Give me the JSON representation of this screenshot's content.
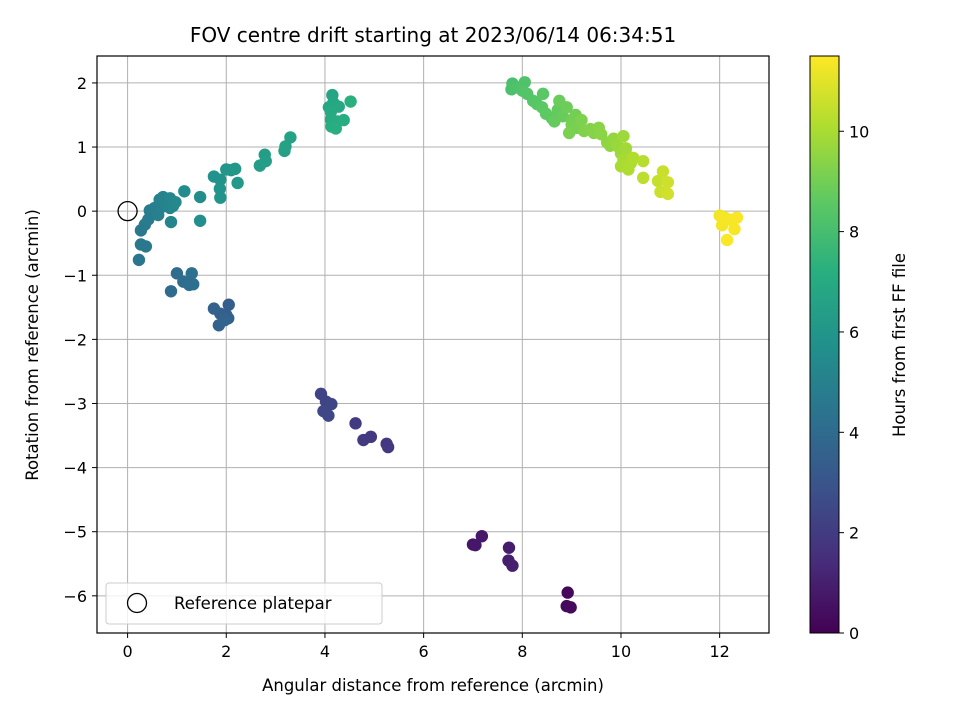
{
  "chart_data": {
    "type": "scatter",
    "title": "FOV centre drift starting at 2023/06/14 06:34:51",
    "xlabel": "Angular distance from reference (arcmin)",
    "ylabel": "Rotation from reference (arcmin)",
    "xlim": [
      -0.62,
      13.0
    ],
    "ylim": [
      -6.58,
      2.42
    ],
    "xticks": [
      0,
      2,
      4,
      6,
      8,
      10,
      12
    ],
    "yticks": [
      -6,
      -5,
      -4,
      -3,
      -2,
      -1,
      0,
      1,
      2
    ],
    "grid": true,
    "legend": {
      "placement": "lower-left",
      "entries": [
        "Reference platepar"
      ]
    },
    "colorbar": {
      "label": "Hours from first FF file",
      "range": [
        0,
        11.5
      ],
      "ticks": [
        0,
        2,
        4,
        6,
        8,
        10
      ],
      "colormap": "viridis"
    },
    "reference_point": {
      "x": 0,
      "y": 0,
      "label": "Reference platepar"
    },
    "points": [
      {
        "x": 8.92,
        "y": -5.95,
        "c": 0.2
      },
      {
        "x": 8.9,
        "y": -6.16,
        "c": 0.25
      },
      {
        "x": 8.98,
        "y": -6.18,
        "c": 0.3
      },
      {
        "x": 7.0,
        "y": -5.2,
        "c": 0.7
      },
      {
        "x": 7.05,
        "y": -5.21,
        "c": 0.72
      },
      {
        "x": 7.18,
        "y": -5.07,
        "c": 0.75
      },
      {
        "x": 7.73,
        "y": -5.25,
        "c": 0.9
      },
      {
        "x": 7.72,
        "y": -5.45,
        "c": 0.95
      },
      {
        "x": 7.8,
        "y": -5.53,
        "c": 1.0
      },
      {
        "x": 5.25,
        "y": -3.63,
        "c": 1.8
      },
      {
        "x": 5.28,
        "y": -3.68,
        "c": 1.85
      },
      {
        "x": 4.93,
        "y": -3.52,
        "c": 1.9
      },
      {
        "x": 4.78,
        "y": -3.57,
        "c": 1.95
      },
      {
        "x": 4.62,
        "y": -3.31,
        "c": 2.0
      },
      {
        "x": 3.92,
        "y": -2.85,
        "c": 2.3
      },
      {
        "x": 4.02,
        "y": -2.97,
        "c": 2.35
      },
      {
        "x": 4.13,
        "y": -3.01,
        "c": 2.4
      },
      {
        "x": 3.97,
        "y": -3.12,
        "c": 2.45
      },
      {
        "x": 4.07,
        "y": -3.19,
        "c": 2.5
      },
      {
        "x": 2.05,
        "y": -1.46,
        "c": 3.4
      },
      {
        "x": 2.0,
        "y": -1.62,
        "c": 3.45
      },
      {
        "x": 2.04,
        "y": -1.67,
        "c": 3.5
      },
      {
        "x": 1.88,
        "y": -1.6,
        "c": 3.55
      },
      {
        "x": 1.75,
        "y": -1.52,
        "c": 3.6
      },
      {
        "x": 1.85,
        "y": -1.78,
        "c": 3.65
      },
      {
        "x": 1.97,
        "y": -1.7,
        "c": 3.7
      },
      {
        "x": 0.88,
        "y": -1.25,
        "c": 4.0
      },
      {
        "x": 1.0,
        "y": -0.97,
        "c": 4.05
      },
      {
        "x": 1.13,
        "y": -1.1,
        "c": 4.1
      },
      {
        "x": 1.25,
        "y": -1.15,
        "c": 4.15
      },
      {
        "x": 1.33,
        "y": -1.14,
        "c": 4.2
      },
      {
        "x": 1.3,
        "y": -0.97,
        "c": 4.25
      },
      {
        "x": 0.23,
        "y": -0.76,
        "c": 4.5
      },
      {
        "x": 0.27,
        "y": -0.52,
        "c": 4.55
      },
      {
        "x": 0.37,
        "y": -0.55,
        "c": 4.6
      },
      {
        "x": 0.27,
        "y": -0.3,
        "c": 4.65
      },
      {
        "x": 0.35,
        "y": -0.21,
        "c": 4.7
      },
      {
        "x": 0.42,
        "y": -0.13,
        "c": 4.75
      },
      {
        "x": 0.45,
        "y": 0.01,
        "c": 4.8
      },
      {
        "x": 0.55,
        "y": 0.05,
        "c": 4.85
      },
      {
        "x": 0.62,
        "y": -0.06,
        "c": 4.9
      },
      {
        "x": 0.68,
        "y": 0.06,
        "c": 4.95
      },
      {
        "x": 0.65,
        "y": 0.18,
        "c": 5.0
      },
      {
        "x": 0.72,
        "y": 0.22,
        "c": 5.05
      },
      {
        "x": 0.78,
        "y": 0.1,
        "c": 5.1
      },
      {
        "x": 0.86,
        "y": 0.05,
        "c": 5.15
      },
      {
        "x": 0.88,
        "y": -0.17,
        "c": 5.2
      },
      {
        "x": 0.86,
        "y": 0.2,
        "c": 5.25
      },
      {
        "x": 0.92,
        "y": 0.08,
        "c": 5.3
      },
      {
        "x": 0.97,
        "y": 0.14,
        "c": 5.35
      },
      {
        "x": 1.15,
        "y": 0.31,
        "c": 5.5
      },
      {
        "x": 1.47,
        "y": 0.22,
        "c": 5.6
      },
      {
        "x": 1.47,
        "y": -0.15,
        "c": 5.65
      },
      {
        "x": 1.75,
        "y": 0.54,
        "c": 5.8
      },
      {
        "x": 1.88,
        "y": 0.49,
        "c": 5.85
      },
      {
        "x": 1.87,
        "y": 0.35,
        "c": 5.9
      },
      {
        "x": 1.88,
        "y": 0.21,
        "c": 5.95
      },
      {
        "x": 2.0,
        "y": 0.65,
        "c": 6.0
      },
      {
        "x": 2.1,
        "y": 0.64,
        "c": 6.05
      },
      {
        "x": 2.18,
        "y": 0.66,
        "c": 6.1
      },
      {
        "x": 2.23,
        "y": 0.44,
        "c": 6.15
      },
      {
        "x": 2.68,
        "y": 0.71,
        "c": 6.3
      },
      {
        "x": 2.78,
        "y": 0.88,
        "c": 6.35
      },
      {
        "x": 2.8,
        "y": 0.78,
        "c": 6.4
      },
      {
        "x": 3.18,
        "y": 0.94,
        "c": 6.5
      },
      {
        "x": 3.2,
        "y": 1.01,
        "c": 6.55
      },
      {
        "x": 3.3,
        "y": 1.15,
        "c": 6.6
      },
      {
        "x": 4.15,
        "y": 1.81,
        "c": 6.75
      },
      {
        "x": 4.08,
        "y": 1.62,
        "c": 6.8
      },
      {
        "x": 4.17,
        "y": 1.69,
        "c": 6.85
      },
      {
        "x": 4.28,
        "y": 1.63,
        "c": 6.9
      },
      {
        "x": 4.12,
        "y": 1.55,
        "c": 6.95
      },
      {
        "x": 4.12,
        "y": 1.43,
        "c": 7.0
      },
      {
        "x": 4.25,
        "y": 1.4,
        "c": 7.05
      },
      {
        "x": 4.38,
        "y": 1.42,
        "c": 7.1
      },
      {
        "x": 4.13,
        "y": 1.32,
        "c": 7.15
      },
      {
        "x": 4.22,
        "y": 1.29,
        "c": 7.2
      },
      {
        "x": 4.52,
        "y": 1.71,
        "c": 7.25
      },
      {
        "x": 7.8,
        "y": 1.99,
        "c": 8.1
      },
      {
        "x": 7.78,
        "y": 1.9,
        "c": 8.15
      },
      {
        "x": 7.9,
        "y": 1.93,
        "c": 8.2
      },
      {
        "x": 8.05,
        "y": 2.01,
        "c": 8.25
      },
      {
        "x": 8.0,
        "y": 1.88,
        "c": 8.3
      },
      {
        "x": 8.1,
        "y": 1.83,
        "c": 8.35
      },
      {
        "x": 8.22,
        "y": 1.72,
        "c": 8.4
      },
      {
        "x": 8.3,
        "y": 1.67,
        "c": 8.45
      },
      {
        "x": 8.42,
        "y": 1.83,
        "c": 8.5
      },
      {
        "x": 8.4,
        "y": 1.62,
        "c": 8.55
      },
      {
        "x": 8.48,
        "y": 1.52,
        "c": 8.6
      },
      {
        "x": 8.6,
        "y": 1.45,
        "c": 8.65
      },
      {
        "x": 8.72,
        "y": 1.58,
        "c": 8.7
      },
      {
        "x": 8.65,
        "y": 1.4,
        "c": 8.75
      },
      {
        "x": 8.82,
        "y": 1.48,
        "c": 8.8
      },
      {
        "x": 8.75,
        "y": 1.72,
        "c": 8.85
      },
      {
        "x": 8.9,
        "y": 1.62,
        "c": 8.9
      },
      {
        "x": 9.0,
        "y": 1.42,
        "c": 8.95
      },
      {
        "x": 9.08,
        "y": 1.5,
        "c": 9.0
      },
      {
        "x": 9.0,
        "y": 1.35,
        "c": 9.05
      },
      {
        "x": 9.1,
        "y": 1.3,
        "c": 9.1
      },
      {
        "x": 8.95,
        "y": 1.22,
        "c": 9.15
      },
      {
        "x": 9.2,
        "y": 1.42,
        "c": 9.2
      },
      {
        "x": 9.25,
        "y": 1.25,
        "c": 9.25
      },
      {
        "x": 9.38,
        "y": 1.28,
        "c": 9.3
      },
      {
        "x": 9.45,
        "y": 1.22,
        "c": 9.35
      },
      {
        "x": 9.55,
        "y": 1.3,
        "c": 9.4
      },
      {
        "x": 9.6,
        "y": 1.2,
        "c": 9.45
      },
      {
        "x": 9.72,
        "y": 1.07,
        "c": 9.5
      },
      {
        "x": 9.78,
        "y": 1.02,
        "c": 9.55
      },
      {
        "x": 9.85,
        "y": 1.13,
        "c": 9.6
      },
      {
        "x": 9.9,
        "y": 1.05,
        "c": 9.65
      },
      {
        "x": 9.95,
        "y": 1.0,
        "c": 9.7
      },
      {
        "x": 10.0,
        "y": 0.9,
        "c": 9.75
      },
      {
        "x": 10.05,
        "y": 1.17,
        "c": 9.8
      },
      {
        "x": 10.1,
        "y": 0.98,
        "c": 9.85
      },
      {
        "x": 10.15,
        "y": 0.85,
        "c": 9.9
      },
      {
        "x": 10.05,
        "y": 0.8,
        "c": 9.95
      },
      {
        "x": 10.0,
        "y": 0.7,
        "c": 10.0
      },
      {
        "x": 10.2,
        "y": 0.75,
        "c": 10.05
      },
      {
        "x": 10.15,
        "y": 0.65,
        "c": 10.1
      },
      {
        "x": 10.25,
        "y": 0.83,
        "c": 10.15
      },
      {
        "x": 10.45,
        "y": 0.78,
        "c": 10.25
      },
      {
        "x": 10.45,
        "y": 0.52,
        "c": 10.35
      },
      {
        "x": 10.75,
        "y": 0.47,
        "c": 10.5
      },
      {
        "x": 10.85,
        "y": 0.62,
        "c": 10.55
      },
      {
        "x": 10.8,
        "y": 0.3,
        "c": 10.6
      },
      {
        "x": 10.95,
        "y": 0.45,
        "c": 10.65
      },
      {
        "x": 10.95,
        "y": 0.27,
        "c": 10.7
      },
      {
        "x": 12.0,
        "y": -0.07,
        "c": 11.3
      },
      {
        "x": 12.05,
        "y": -0.22,
        "c": 11.32
      },
      {
        "x": 12.1,
        "y": -0.1,
        "c": 11.35
      },
      {
        "x": 12.18,
        "y": -0.13,
        "c": 11.38
      },
      {
        "x": 12.3,
        "y": -0.28,
        "c": 11.4
      },
      {
        "x": 12.35,
        "y": -0.1,
        "c": 11.42
      },
      {
        "x": 12.15,
        "y": -0.45,
        "c": 11.45
      }
    ]
  }
}
